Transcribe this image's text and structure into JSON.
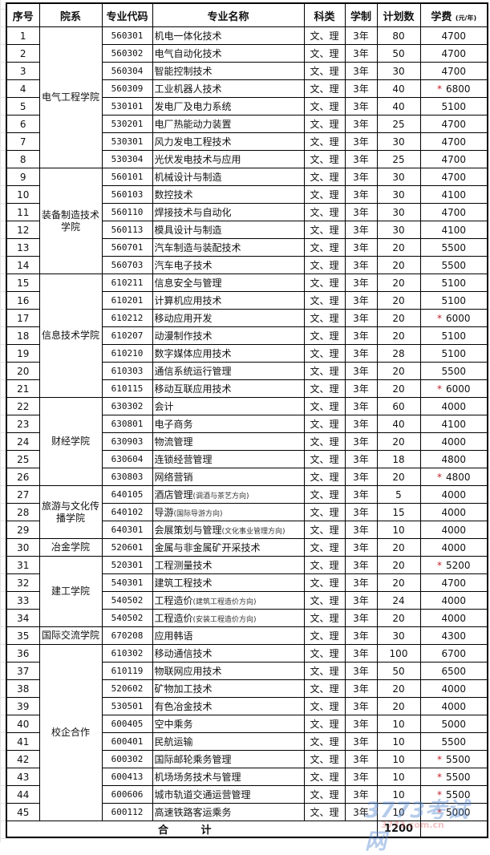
{
  "headers": {
    "seq": "序号",
    "dept": "院系",
    "code": "专业代码",
    "name": "专业名称",
    "subject": "科类",
    "duration": "学制",
    "quota": "计划数",
    "fee": "学费",
    "fee_unit": "(元/年)"
  },
  "depts": [
    {
      "name": "电气工程学院",
      "rows": 8
    },
    {
      "name": "装备制造技术学院",
      "rows": 6
    },
    {
      "name": "信息技术学院",
      "rows": 7
    },
    {
      "name": "财经学院",
      "rows": 5
    },
    {
      "name": "旅游与文化传播学院",
      "rows": 3
    },
    {
      "name": "冶金学院",
      "rows": 1
    },
    {
      "name": "建工学院",
      "rows": 4
    },
    {
      "name": "国际交流学院",
      "rows": 1
    },
    {
      "name": "校企合作",
      "rows": 10
    }
  ],
  "rows": [
    {
      "seq": "1",
      "code": "560301",
      "name": "机电一体化技术",
      "subject": "文、理",
      "duration": "3年",
      "quota": "80",
      "fee": "4700"
    },
    {
      "seq": "2",
      "code": "560302",
      "name": "电气自动化技术",
      "subject": "文、理",
      "duration": "3年",
      "quota": "50",
      "fee": "4700"
    },
    {
      "seq": "3",
      "code": "560304",
      "name": "智能控制技术",
      "subject": "文、理",
      "duration": "3年",
      "quota": "30",
      "fee": "4700"
    },
    {
      "seq": "4",
      "code": "560309",
      "name": "工业机器人技术",
      "subject": "文、理",
      "duration": "3年",
      "quota": "40",
      "fee": "6800",
      "star": "*"
    },
    {
      "seq": "5",
      "code": "530101",
      "name": "发电厂及电力系统",
      "subject": "文、理",
      "duration": "3年",
      "quota": "40",
      "fee": "5100"
    },
    {
      "seq": "6",
      "code": "530201",
      "name": "电厂热能动力装置",
      "subject": "文、理",
      "duration": "3年",
      "quota": "25",
      "fee": "4700"
    },
    {
      "seq": "7",
      "code": "530301",
      "name": "风力发电工程技术",
      "subject": "文、理",
      "duration": "3年",
      "quota": "30",
      "fee": "4700"
    },
    {
      "seq": "8",
      "code": "530304",
      "name": "光伏发电技术与应用",
      "subject": "文、理",
      "duration": "3年",
      "quota": "25",
      "fee": "4700"
    },
    {
      "seq": "9",
      "code": "560101",
      "name": "机械设计与制造",
      "subject": "文、理",
      "duration": "3年",
      "quota": "30",
      "fee": "4700"
    },
    {
      "seq": "10",
      "code": "560103",
      "name": "数控技术",
      "subject": "文、理",
      "duration": "3年",
      "quota": "30",
      "fee": "4100"
    },
    {
      "seq": "11",
      "code": "560110",
      "name": "焊接技术与自动化",
      "subject": "文、理",
      "duration": "3年",
      "quota": "30",
      "fee": "4700"
    },
    {
      "seq": "12",
      "code": "560113",
      "name": "模具设计与制造",
      "subject": "文、理",
      "duration": "3年",
      "quota": "30",
      "fee": "4100"
    },
    {
      "seq": "13",
      "code": "560701",
      "name": "汽车制造与装配技术",
      "subject": "文、理",
      "duration": "3年",
      "quota": "20",
      "fee": "5500"
    },
    {
      "seq": "14",
      "code": "560703",
      "name": "汽车电子技术",
      "subject": "文、理",
      "duration": "3年",
      "quota": "20",
      "fee": "5500"
    },
    {
      "seq": "15",
      "code": "610211",
      "name": "信息安全与管理",
      "subject": "文、理",
      "duration": "3年",
      "quota": "20",
      "fee": "5100"
    },
    {
      "seq": "16",
      "code": "610201",
      "name": "计算机应用技术",
      "subject": "文、理",
      "duration": "3年",
      "quota": "20",
      "fee": "5100"
    },
    {
      "seq": "17",
      "code": "610212",
      "name": "移动应用开发",
      "subject": "文、理",
      "duration": "3年",
      "quota": "20",
      "fee": "6000",
      "star": "*"
    },
    {
      "seq": "18",
      "code": "610207",
      "name": "动漫制作技术",
      "subject": "文、理",
      "duration": "3年",
      "quota": "20",
      "fee": "5100"
    },
    {
      "seq": "19",
      "code": "610210",
      "name": "数字媒体应用技术",
      "subject": "文、理",
      "duration": "3年",
      "quota": "28",
      "fee": "5100"
    },
    {
      "seq": "20",
      "code": "610303",
      "name": "通信系统运行管理",
      "subject": "文、理",
      "duration": "3年",
      "quota": "20",
      "fee": "5500"
    },
    {
      "seq": "21",
      "code": "610115",
      "name": "移动互联应用技术",
      "subject": "文、理",
      "duration": "3年",
      "quota": "20",
      "fee": "6000",
      "star": "*"
    },
    {
      "seq": "22",
      "code": "630302",
      "name": "会计",
      "subject": "文、理",
      "duration": "3年",
      "quota": "60",
      "fee": "4000"
    },
    {
      "seq": "23",
      "code": "630801",
      "name": "电子商务",
      "subject": "文、理",
      "duration": "3年",
      "quota": "40",
      "fee": "4100"
    },
    {
      "seq": "24",
      "code": "630903",
      "name": "物流管理",
      "subject": "文、理",
      "duration": "3年",
      "quota": "20",
      "fee": "4000"
    },
    {
      "seq": "25",
      "code": "630604",
      "name": "连锁经营管理",
      "subject": "文、理",
      "duration": "3年",
      "quota": "18",
      "fee": "4800"
    },
    {
      "seq": "26",
      "code": "630803",
      "name": "网络营销",
      "subject": "文、理",
      "duration": "3年",
      "quota": "20",
      "fee": "4800",
      "star": "*"
    },
    {
      "seq": "27",
      "code": "640105",
      "name": "酒店管理",
      "note": "(调酒与茶艺方向)",
      "subject": "文、理",
      "duration": "3年",
      "quota": "5",
      "fee": "4000"
    },
    {
      "seq": "28",
      "code": "640102",
      "name": "导游",
      "note": "(国际导游方向)",
      "subject": "文、理",
      "duration": "3年",
      "quota": "15",
      "fee": "4000"
    },
    {
      "seq": "29",
      "code": "640301",
      "name": "会展策划与管理",
      "note": "(文化事业管理方向)",
      "subject": "文、理",
      "duration": "3年",
      "quota": "10",
      "fee": "4000"
    },
    {
      "seq": "30",
      "code": "520601",
      "name": "金属与非金属矿开采技术",
      "subject": "文、理",
      "duration": "3年",
      "quota": "20",
      "fee": "4000"
    },
    {
      "seq": "31",
      "code": "520301",
      "name": "工程测量技术",
      "subject": "文、理",
      "duration": "3年",
      "quota": "20",
      "fee": "5200",
      "star": "*"
    },
    {
      "seq": "32",
      "code": "540301",
      "name": "建筑工程技术",
      "subject": "文、理",
      "duration": "3年",
      "quota": "20",
      "fee": "4700"
    },
    {
      "seq": "33",
      "code": "540502",
      "name": "工程造价",
      "note": "(建筑工程造价方向)",
      "subject": "文、理",
      "duration": "3年",
      "quota": "24",
      "fee": "4000"
    },
    {
      "seq": "34",
      "code": "540502",
      "name": "工程造价",
      "note": "(安装工程造价方向)",
      "subject": "文、理",
      "duration": "3年",
      "quota": "20",
      "fee": "4000"
    },
    {
      "seq": "35",
      "code": "670208",
      "name": "应用韩语",
      "subject": "文、理",
      "duration": "3年",
      "quota": "30",
      "fee": "4300"
    },
    {
      "seq": "36",
      "code": "610302",
      "name": "移动通信技术",
      "subject": "文、理",
      "duration": "3年",
      "quota": "100",
      "fee": "6700"
    },
    {
      "seq": "37",
      "code": "610119",
      "name": "物联网应用技术",
      "subject": "文、理",
      "duration": "3年",
      "quota": "50",
      "fee": "6500"
    },
    {
      "seq": "38",
      "code": "520602",
      "name": "矿物加工技术",
      "subject": "文、理",
      "duration": "3年",
      "quota": "20",
      "fee": "4000"
    },
    {
      "seq": "39",
      "code": "530501",
      "name": "有色冶金技术",
      "subject": "文、理",
      "duration": "3年",
      "quota": "20",
      "fee": "4000"
    },
    {
      "seq": "40",
      "code": "600405",
      "name": "空中乘务",
      "subject": "文、理",
      "duration": "3年",
      "quota": "10",
      "fee": "5000"
    },
    {
      "seq": "41",
      "code": "600401",
      "name": "民航运输",
      "subject": "文、理",
      "duration": "3年",
      "quota": "10",
      "fee": "5500"
    },
    {
      "seq": "42",
      "code": "600302",
      "name": "国际邮轮乘务管理",
      "subject": "文、理",
      "duration": "3年",
      "quota": "10",
      "fee": "5500",
      "star": "*"
    },
    {
      "seq": "43",
      "code": "600413",
      "name": "机场场务技术与管理",
      "subject": "文、理",
      "duration": "3年",
      "quota": "10",
      "fee": "5500",
      "star": "*"
    },
    {
      "seq": "44",
      "code": "600606",
      "name": "城市轨道交通运营管理",
      "subject": "文、理",
      "duration": "3年",
      "quota": "10",
      "fee": "5500",
      "star": "*"
    },
    {
      "seq": "45",
      "code": "600112",
      "name": "高速铁路客运乘务",
      "subject": "文、理",
      "duration": "3年",
      "quota": "10",
      "fee": "5000",
      "star": "*"
    }
  ],
  "total": {
    "label": "合 计",
    "quota": "1200"
  },
  "watermark": {
    "main": "3773考试网",
    "sub": "3773.com.cn"
  },
  "colors": {
    "star": "#c0202a",
    "border": "#000000"
  }
}
